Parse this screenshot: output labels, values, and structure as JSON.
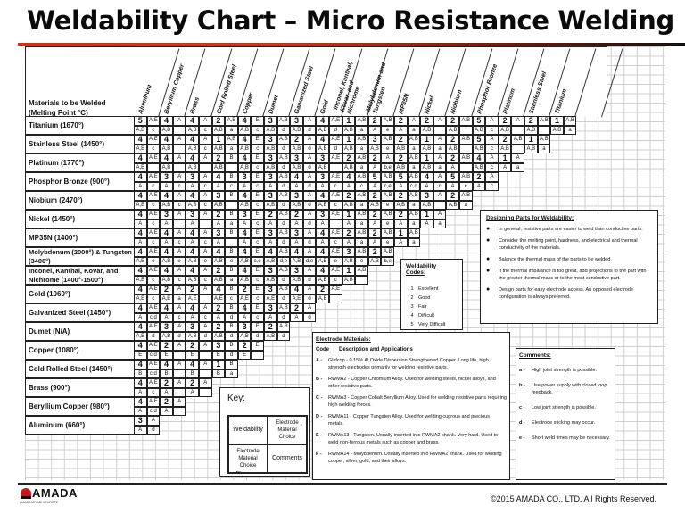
{
  "title": "Weldability Chart – Micro Resistance Welding",
  "header_label": "Materials to be Welded (Melting Point °C)",
  "columns": [
    "Aluminum",
    "Beryllium Copper",
    "Brass",
    "Cold Rolled Steel",
    "Copper",
    "Dumet",
    "Galvanized Steel",
    "Gold",
    "Inconel, Kanthal, Kovar, and Nichrome",
    "Molybdenum and Tungsten",
    "MP35N",
    "Nickel",
    "Niobium",
    "Phosphor Bronze",
    "Platinum",
    "Stainless Steel",
    "Titanium"
  ],
  "rows": [
    {
      "label": "Titanium (1670°)",
      "top": [
        "5",
        "A,E",
        "4",
        "A",
        "4",
        "A",
        "2",
        "A,B",
        "4",
        "E",
        "3",
        "A,B",
        "3",
        "A",
        "4",
        "A,E",
        "1",
        "A,B",
        "2",
        "A,B",
        "2",
        "A",
        "2",
        "A",
        "2",
        "A,B",
        "5",
        "A",
        "2",
        "A",
        "2",
        "A,B",
        "1",
        "A,B"
      ],
      "bottom": [
        "A,B",
        "c",
        "A,B",
        "",
        "A,B",
        "c",
        "A,B",
        "a",
        "A,B",
        "c",
        "A,B",
        "d",
        "A,B",
        "d",
        "A,B",
        "d",
        "A,B",
        "a",
        "A",
        "e",
        "A",
        "a",
        "A,B",
        "",
        "A,B",
        "",
        "A,B",
        "c",
        "A,B",
        "",
        "A,B",
        "",
        "A,B",
        "a"
      ]
    },
    {
      "label": "Stainless Steel (1450°)",
      "top": [
        "4",
        "A,E",
        "4",
        "A",
        "4",
        "A",
        "1",
        "A,B",
        "4",
        "E",
        "3",
        "A,B",
        "2",
        "A",
        "4",
        "A,E",
        "1",
        "A,B",
        "3",
        "A,B",
        "2",
        "A,B",
        "1",
        "A",
        "2",
        "A,B",
        "5",
        "A",
        "2",
        "A,B",
        "1",
        "A,B"
      ],
      "bottom": [
        "A,B",
        "c",
        "A,B",
        "",
        "A,B",
        "c",
        "A,B",
        "a",
        "A,B",
        "c",
        "A,B",
        "d",
        "A,B",
        "d",
        "A,B",
        "d",
        "A,B",
        "a",
        "A,B",
        "e",
        "A,B",
        "a",
        "A,B",
        "a",
        "A,B",
        "",
        "A,B",
        "c",
        "A,B",
        "",
        "A,B",
        "a"
      ]
    },
    {
      "label": "Platinum (1770°)",
      "top": [
        "4",
        "A,E",
        "4",
        "A",
        "4",
        "A",
        "2",
        "B",
        "4",
        "E",
        "3",
        "A,B",
        "3",
        "A",
        "3",
        "A,E",
        "2",
        "A,B",
        "2",
        "A",
        "2",
        "A,B",
        "1",
        "A",
        "2",
        "A,B",
        "4",
        "A",
        "1",
        "A"
      ],
      "bottom": [
        "A,B",
        "",
        "A,B",
        "",
        "A,B",
        "",
        "A,B",
        "",
        "A,B",
        "c",
        "A,B",
        "d",
        "A,B",
        "d",
        "A,B",
        "",
        "A,B",
        "a",
        "A",
        "b,e",
        "A,B",
        "a",
        "A,B",
        "a",
        "A",
        "",
        "A,B",
        "c",
        "A",
        "a"
      ]
    },
    {
      "label": "Phosphor Bronze (900°)",
      "top": [
        "4",
        "A,E",
        "3",
        "A",
        "3",
        "A",
        "4",
        "B",
        "3",
        "E",
        "3",
        "A,B",
        "4",
        "A",
        "3",
        "A,E",
        "4",
        "A,B",
        "5",
        "A,B",
        "5",
        "A,B",
        "4",
        "A",
        "5",
        "A,B",
        "2",
        "A"
      ],
      "bottom": [
        "A",
        "c",
        "A",
        "c",
        "A",
        "c",
        "A",
        "c",
        "A",
        "c",
        "A",
        "d",
        "A",
        "d",
        "A",
        "c",
        "A",
        "c",
        "A",
        "c,e",
        "A",
        "c,d",
        "A",
        "c",
        "A",
        "c",
        "A",
        "c"
      ]
    },
    {
      "label": "Niobium (2470°)",
      "top": [
        "4",
        "A,E",
        "4",
        "A",
        "4",
        "A",
        "3",
        "B",
        "4",
        "E",
        "3",
        "A,B",
        "3",
        "A",
        "4",
        "A,E",
        "2",
        "A,B",
        "2",
        "A,B",
        "2",
        "A,B",
        "3",
        "A",
        "2",
        "A,B"
      ],
      "bottom": [
        "A,B",
        "c",
        "A,B",
        "c",
        "A,B",
        "c",
        "A,B",
        "",
        "A,B",
        "c",
        "A,B",
        "d",
        "A,B",
        "d",
        "A,B",
        "c",
        "A,B",
        "a",
        "A,B",
        "e",
        "A,B",
        "a",
        "A,B",
        "",
        "A,B",
        "a"
      ]
    },
    {
      "label": "Nickel (1450°)",
      "top": [
        "4",
        "A,E",
        "3",
        "A",
        "3",
        "A",
        "2",
        "B",
        "3",
        "E",
        "2",
        "A,B",
        "2",
        "A",
        "3",
        "A,E",
        "1",
        "A,B",
        "2",
        "A,B",
        "2",
        "A,B",
        "1",
        "A"
      ],
      "bottom": [
        "A",
        "c",
        "A",
        "",
        "A",
        "",
        "A",
        "a",
        "A",
        "c",
        "A",
        "d",
        "A",
        "d",
        "A",
        "",
        "A",
        "a",
        "A",
        "e",
        "A",
        "a",
        "A",
        "a"
      ]
    },
    {
      "label": "MP35N (1400°)",
      "top": [
        "4",
        "A,E",
        "4",
        "A",
        "4",
        "A",
        "3",
        "B",
        "4",
        "E",
        "3",
        "A,B",
        "3",
        "A",
        "4",
        "A,E",
        "2",
        "A,B",
        "2",
        "A,B",
        "1",
        "A,B"
      ],
      "bottom": [
        "A",
        "c",
        "A",
        "c",
        "A",
        "c",
        "A",
        "",
        "A",
        "c",
        "A",
        "d",
        "A",
        "d",
        "A",
        "c",
        "A",
        "a",
        "A",
        "e",
        "A",
        "a"
      ]
    },
    {
      "label": "Molybdenum (2000°) & Tungsten (3400°)",
      "top": [
        "4",
        "A,E",
        "4",
        "A",
        "4",
        "A",
        "4",
        "B",
        "4",
        "E",
        "4",
        "A,B",
        "4",
        "A",
        "4",
        "A,E",
        "3",
        "A,B",
        "2",
        "A,B"
      ],
      "bottom": [
        "A,B",
        "e",
        "A,B",
        "e",
        "A,B",
        "e",
        "A,B",
        "e",
        "A,B",
        "c,e",
        "A,B",
        "d,e",
        "A,B",
        "d,e",
        "A,B",
        "e",
        "A,B",
        "e",
        "A,B",
        "b,e"
      ]
    },
    {
      "label": "Inconel, Kanthal, Kovar, and Nichrome (1400°-1500°)",
      "top": [
        "4",
        "A,E",
        "4",
        "A",
        "4",
        "A",
        "2",
        "B",
        "4",
        "E",
        "3",
        "A,B",
        "3",
        "A",
        "4",
        "A,E",
        "1",
        "A,B"
      ],
      "bottom": [
        "A,B",
        "c",
        "A,B",
        "c",
        "A,B",
        "c",
        "A,B",
        "a",
        "A,B",
        "c",
        "A,B",
        "d",
        "A,B",
        "d",
        "A,B",
        "c",
        "A,B",
        ""
      ]
    },
    {
      "label": "Gold (1060°)",
      "top": [
        "4",
        "A,E",
        "2",
        "A",
        "2",
        "A",
        "4",
        "B",
        "2",
        "E",
        "3",
        "A,B",
        "4",
        "A",
        "2",
        "A,E"
      ],
      "bottom": [
        "A,E",
        "c",
        "A,E",
        "a",
        "A,E",
        "",
        "A,E",
        "c",
        "A,E",
        "c",
        "A,E",
        "d",
        "A,E",
        "d",
        "A,E",
        ""
      ]
    },
    {
      "label": "Galvanized Steel (1450°)",
      "top": [
        "4",
        "A,E",
        "4",
        "A",
        "4",
        "A",
        "2",
        "B",
        "4",
        "E",
        "3",
        "A,B",
        "2",
        "A"
      ],
      "bottom": [
        "A",
        "c,d",
        "A",
        "c",
        "A",
        "c",
        "A",
        "d",
        "A",
        "c",
        "A",
        "d",
        "A",
        "d"
      ]
    },
    {
      "label": "Dumet (N/A)",
      "top": [
        "4",
        "A,E",
        "3",
        "A",
        "3",
        "A",
        "2",
        "B",
        "3",
        "E",
        "2",
        "A,B"
      ],
      "bottom": [
        "A,B",
        "d",
        "A,B",
        "d",
        "A,B",
        "d",
        "A,B",
        "d",
        "A,B",
        "d",
        "A,B",
        "d"
      ]
    },
    {
      "label": "Copper (1080°)",
      "top": [
        "4",
        "A,E",
        "2",
        "A",
        "2",
        "A",
        "3",
        "B",
        "2",
        "E"
      ],
      "bottom": [
        "E",
        "c,d",
        "E",
        "",
        "E",
        "",
        "E",
        "d",
        "E",
        ""
      ]
    },
    {
      "label": "Cold Rolled Steel (1450°)",
      "top": [
        "4",
        "A,E",
        "4",
        "A",
        "4",
        "A",
        "1",
        "B"
      ],
      "bottom": [
        "B",
        "c,d",
        "B",
        "",
        "B",
        "",
        "B",
        "a"
      ]
    },
    {
      "label": "Brass (900°)",
      "top": [
        "4",
        "A,E",
        "2",
        "A",
        "2",
        "A"
      ],
      "bottom": [
        "A",
        "c",
        "A",
        "",
        "A",
        ""
      ]
    },
    {
      "label": "Beryllium Copper (980°)",
      "top": [
        "4",
        "A,E",
        "2",
        "A"
      ],
      "bottom": [
        "A",
        "c,d",
        "A",
        ""
      ]
    },
    {
      "label": "Aluminum (660°)",
      "top": [
        "3",
        "A"
      ],
      "bottom": [
        "A",
        "d"
      ]
    }
  ],
  "weldability_codes": {
    "title": "Weldability Codes:",
    "items": [
      {
        "code": "1",
        "label": "Excellent"
      },
      {
        "code": "2",
        "label": "Good"
      },
      {
        "code": "3",
        "label": "Fair"
      },
      {
        "code": "4",
        "label": "Difficult"
      },
      {
        "code": "5",
        "label": "Very Difficult"
      }
    ]
  },
  "designing": {
    "title": "Designing Parts for Weldability:",
    "items": [
      "In general, resistive parts are easier to weld than conductive parts.",
      "Consider the melting point, hardness, and electrical and thermal conductivity of the materials.",
      "Balance the thermal mass of the parts to be welded.",
      "If the thermal imbalance is too great, add projections to the part with the greater thermal mass or to the most conductive part.",
      "Design parts for easy electrode access.  An opposed electrode configuration is always preferred."
    ]
  },
  "electrode": {
    "title": "Electrode Materials:",
    "code_header": "Code",
    "desc_header": "Description and Applications",
    "items": [
      {
        "code": "A -",
        "desc": "Glidcop - 0.15% Al Oxide Dispersion Strengthened Copper.  Long life, high strength electrodes primarily for welding resistive parts."
      },
      {
        "code": "B -",
        "desc": "RWMA2 - Copper Chromium Alloy. Used for welding steels, nickel alloys, and other resistive parts."
      },
      {
        "code": "C -",
        "desc": "RWMA3 - Copper Cobalt Beryllium Alloy.  Used for welding resistive parts requiring high welding forces."
      },
      {
        "code": "D -",
        "desc": "RWMA11 - Copper Tungsten Alloy.  Used for welding cuprous and precious metals."
      },
      {
        "code": "E -",
        "desc": "RWMA13 - Tungsten.  Usually inserted into RWMA2 shank.  Very hard. Used to weld non-ferrous metals such as copper and brass."
      },
      {
        "code": "F -",
        "desc": "RWMA14 - Molybdenum.  Usually inserted into RWMA2 shank.  Used for welding copper, silver, gold, and their alloys."
      }
    ]
  },
  "comments": {
    "title": "Comments:",
    "items": [
      {
        "code": "a -",
        "text": "High joint strength is possible."
      },
      {
        "code": "b -",
        "text": "Use power supply with closed loop feedback."
      },
      {
        "code": "c -",
        "text": "Low joint strength is possible."
      },
      {
        "code": "d -",
        "text": "Electrode sticking may occur."
      },
      {
        "code": "e -",
        "text": "Short weld times may be necessary."
      }
    ]
  },
  "key": {
    "title": "Key:",
    "weldability": "Weldability",
    "electrode_top": "Electrode Material Choice",
    "electrode_bottom": "Electrode Material Choice",
    "comments": "Comments"
  },
  "footer": {
    "logo": "AMADA",
    "logo_sub": "AMADA MIYACHI EUROPE",
    "copyright": "©2015 AMADA CO., LTD. All Rights Reserved."
  },
  "colors": {
    "accent": "#d2321a",
    "logo_red": "#d0141e"
  }
}
